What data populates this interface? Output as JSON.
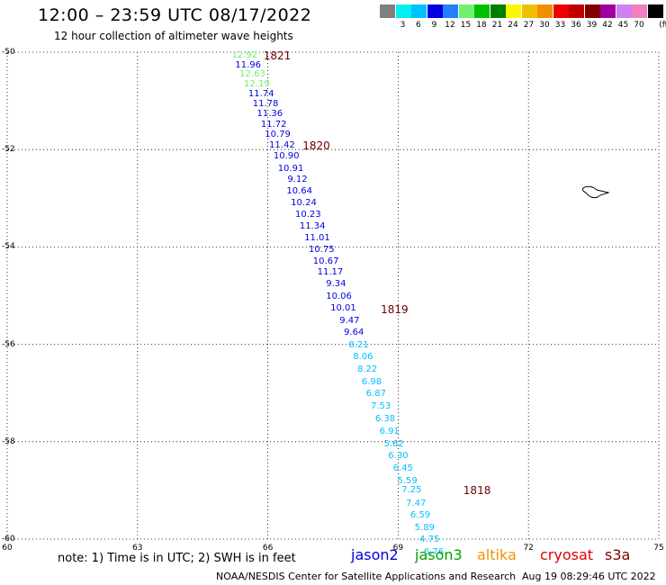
{
  "header": {
    "title": "12:00 – 23:59 UTC 08/17/2022",
    "subtitle": "12 hour collection of altimeter wave heights"
  },
  "color_scale": {
    "unit": "(ft)",
    "swatches": [
      {
        "color": "#808080",
        "label": ""
      },
      {
        "color": "#00f0f0",
        "label": "3"
      },
      {
        "color": "#00c0ff",
        "label": "6"
      },
      {
        "color": "#0000e0",
        "label": "9"
      },
      {
        "color": "#2080ff",
        "label": "12"
      },
      {
        "color": "#70f070",
        "label": "15"
      },
      {
        "color": "#00c000",
        "label": "18"
      },
      {
        "color": "#008000",
        "label": "21"
      },
      {
        "color": "#f8f800",
        "label": "24"
      },
      {
        "color": "#f0c000",
        "label": "27"
      },
      {
        "color": "#f09000",
        "label": "30"
      },
      {
        "color": "#f00000",
        "label": "33"
      },
      {
        "color": "#c00000",
        "label": "36"
      },
      {
        "color": "#800000",
        "label": "39"
      },
      {
        "color": "#a000a0",
        "label": "42"
      },
      {
        "color": "#d080f0",
        "label": "45"
      },
      {
        "color": "#f080c0",
        "label": "70"
      },
      {
        "color": "#000000",
        "label": ""
      }
    ]
  },
  "map": {
    "lon_ticks": [
      "60",
      "63",
      "66",
      "69",
      "72",
      "75"
    ],
    "lat_ticks": [
      "-50",
      "-52",
      "-54",
      "-56",
      "-58",
      "-60"
    ],
    "lon_range": [
      60,
      75
    ],
    "lat_range": [
      -60,
      -50
    ]
  },
  "passes": [
    {
      "label": "1821",
      "lon": 65.9,
      "lat": -50.07
    },
    {
      "label": "1820",
      "lon": 66.8,
      "lat": -51.92
    },
    {
      "label": "1819",
      "lon": 68.6,
      "lat": -55.28
    },
    {
      "label": "1818",
      "lon": 70.5,
      "lat": -59.01
    }
  ],
  "wave_heights": [
    {
      "value": "12.92",
      "lon": 65.17,
      "lat": -50.07,
      "color": "#70f070"
    },
    {
      "value": "11.96",
      "lon": 65.25,
      "lat": -50.27,
      "color": "#0000e0"
    },
    {
      "value": "12.63",
      "lon": 65.35,
      "lat": -50.47,
      "color": "#70f070"
    },
    {
      "value": "12.19",
      "lon": 65.45,
      "lat": -50.67,
      "color": "#70f070"
    },
    {
      "value": "11.74",
      "lon": 65.55,
      "lat": -50.87,
      "color": "#0000e0"
    },
    {
      "value": "11.78",
      "lon": 65.65,
      "lat": -51.07,
      "color": "#0000e0"
    },
    {
      "value": "11.36",
      "lon": 65.75,
      "lat": -51.27,
      "color": "#0000e0"
    },
    {
      "value": "11.72",
      "lon": 65.84,
      "lat": -51.49,
      "color": "#0000e0"
    },
    {
      "value": "10.79",
      "lon": 65.93,
      "lat": -51.7,
      "color": "#0000e0"
    },
    {
      "value": "11.42",
      "lon": 66.03,
      "lat": -51.92,
      "color": "#0000e0"
    },
    {
      "value": "10.90",
      "lon": 66.13,
      "lat": -52.15,
      "color": "#0000e0"
    },
    {
      "value": "10.91",
      "lon": 66.23,
      "lat": -52.4,
      "color": "#0000e0"
    },
    {
      "value": "9.12",
      "lon": 66.45,
      "lat": -52.63,
      "color": "#0000e0"
    },
    {
      "value": "10.64",
      "lon": 66.43,
      "lat": -52.87,
      "color": "#0000e0"
    },
    {
      "value": "10.24",
      "lon": 66.53,
      "lat": -53.1,
      "color": "#0000e0"
    },
    {
      "value": "10.23",
      "lon": 66.63,
      "lat": -53.34,
      "color": "#0000e0"
    },
    {
      "value": "11.34",
      "lon": 66.73,
      "lat": -53.59,
      "color": "#0000e0"
    },
    {
      "value": "11.01",
      "lon": 66.84,
      "lat": -53.83,
      "color": "#0000e0"
    },
    {
      "value": "10.75",
      "lon": 66.94,
      "lat": -54.07,
      "color": "#0000e0"
    },
    {
      "value": "10.67",
      "lon": 67.04,
      "lat": -54.3,
      "color": "#0000e0"
    },
    {
      "value": "11.17",
      "lon": 67.14,
      "lat": -54.53,
      "color": "#0000e0"
    },
    {
      "value": "9.34",
      "lon": 67.34,
      "lat": -54.77,
      "color": "#0000e0"
    },
    {
      "value": "10.06",
      "lon": 67.34,
      "lat": -55.02,
      "color": "#0000e0"
    },
    {
      "value": "10.01",
      "lon": 67.44,
      "lat": -55.26,
      "color": "#0000e0"
    },
    {
      "value": "9.47",
      "lon": 67.65,
      "lat": -55.52,
      "color": "#0000e0"
    },
    {
      "value": "9.64",
      "lon": 67.75,
      "lat": -55.77,
      "color": "#0000e0"
    },
    {
      "value": "8.21",
      "lon": 67.86,
      "lat": -56.02,
      "color": "#00c0ff"
    },
    {
      "value": "8.06",
      "lon": 67.96,
      "lat": -56.27,
      "color": "#00c0ff"
    },
    {
      "value": "8.22",
      "lon": 68.06,
      "lat": -56.53,
      "color": "#00c0ff"
    },
    {
      "value": "6.98",
      "lon": 68.16,
      "lat": -56.78,
      "color": "#00c0ff"
    },
    {
      "value": "6.87",
      "lon": 68.26,
      "lat": -57.03,
      "color": "#00c0ff"
    },
    {
      "value": "7.53",
      "lon": 68.37,
      "lat": -57.29,
      "color": "#00c0ff"
    },
    {
      "value": "6.38",
      "lon": 68.47,
      "lat": -57.54,
      "color": "#00c0ff"
    },
    {
      "value": "6.91",
      "lon": 68.57,
      "lat": -57.8,
      "color": "#00c0ff"
    },
    {
      "value": "5.62",
      "lon": 68.67,
      "lat": -58.05,
      "color": "#00c0ff"
    },
    {
      "value": "6.30",
      "lon": 68.77,
      "lat": -58.3,
      "color": "#00c0ff"
    },
    {
      "value": "6.45",
      "lon": 68.88,
      "lat": -58.56,
      "color": "#00c0ff"
    },
    {
      "value": "5.59",
      "lon": 68.98,
      "lat": -58.81,
      "color": "#00c0ff"
    },
    {
      "value": "7.25",
      "lon": 69.08,
      "lat": -59.01,
      "color": "#00c0ff"
    },
    {
      "value": "7.47",
      "lon": 69.18,
      "lat": -59.27,
      "color": "#00c0ff"
    },
    {
      "value": "6.59",
      "lon": 69.28,
      "lat": -59.52,
      "color": "#00c0ff"
    },
    {
      "value": "5.89",
      "lon": 69.38,
      "lat": -59.77,
      "color": "#00c0ff"
    },
    {
      "value": "4.75",
      "lon": 69.49,
      "lat": -60.02,
      "color": "#00c0ff"
    },
    {
      "value": "6.76",
      "lon": 69.59,
      "lat": -60.28,
      "color": "#00c0ff"
    }
  ],
  "legend": {
    "note": "note: 1) Time is in UTC; 2) SWH is in feet",
    "satellites": [
      {
        "name": "jason2",
        "color": "#0000e0"
      },
      {
        "name": "jason3",
        "color": "#00a000"
      },
      {
        "name": "altika",
        "color": "#f09000"
      },
      {
        "name": "cryosat",
        "color": "#e00000"
      },
      {
        "name": "s3a",
        "color": "#800000"
      }
    ]
  },
  "footer": {
    "credit": "NOAA/NESDIS Center for Satellite Applications and Research",
    "timestamp": "Aug 19 08:29:46 UTC 2022"
  }
}
